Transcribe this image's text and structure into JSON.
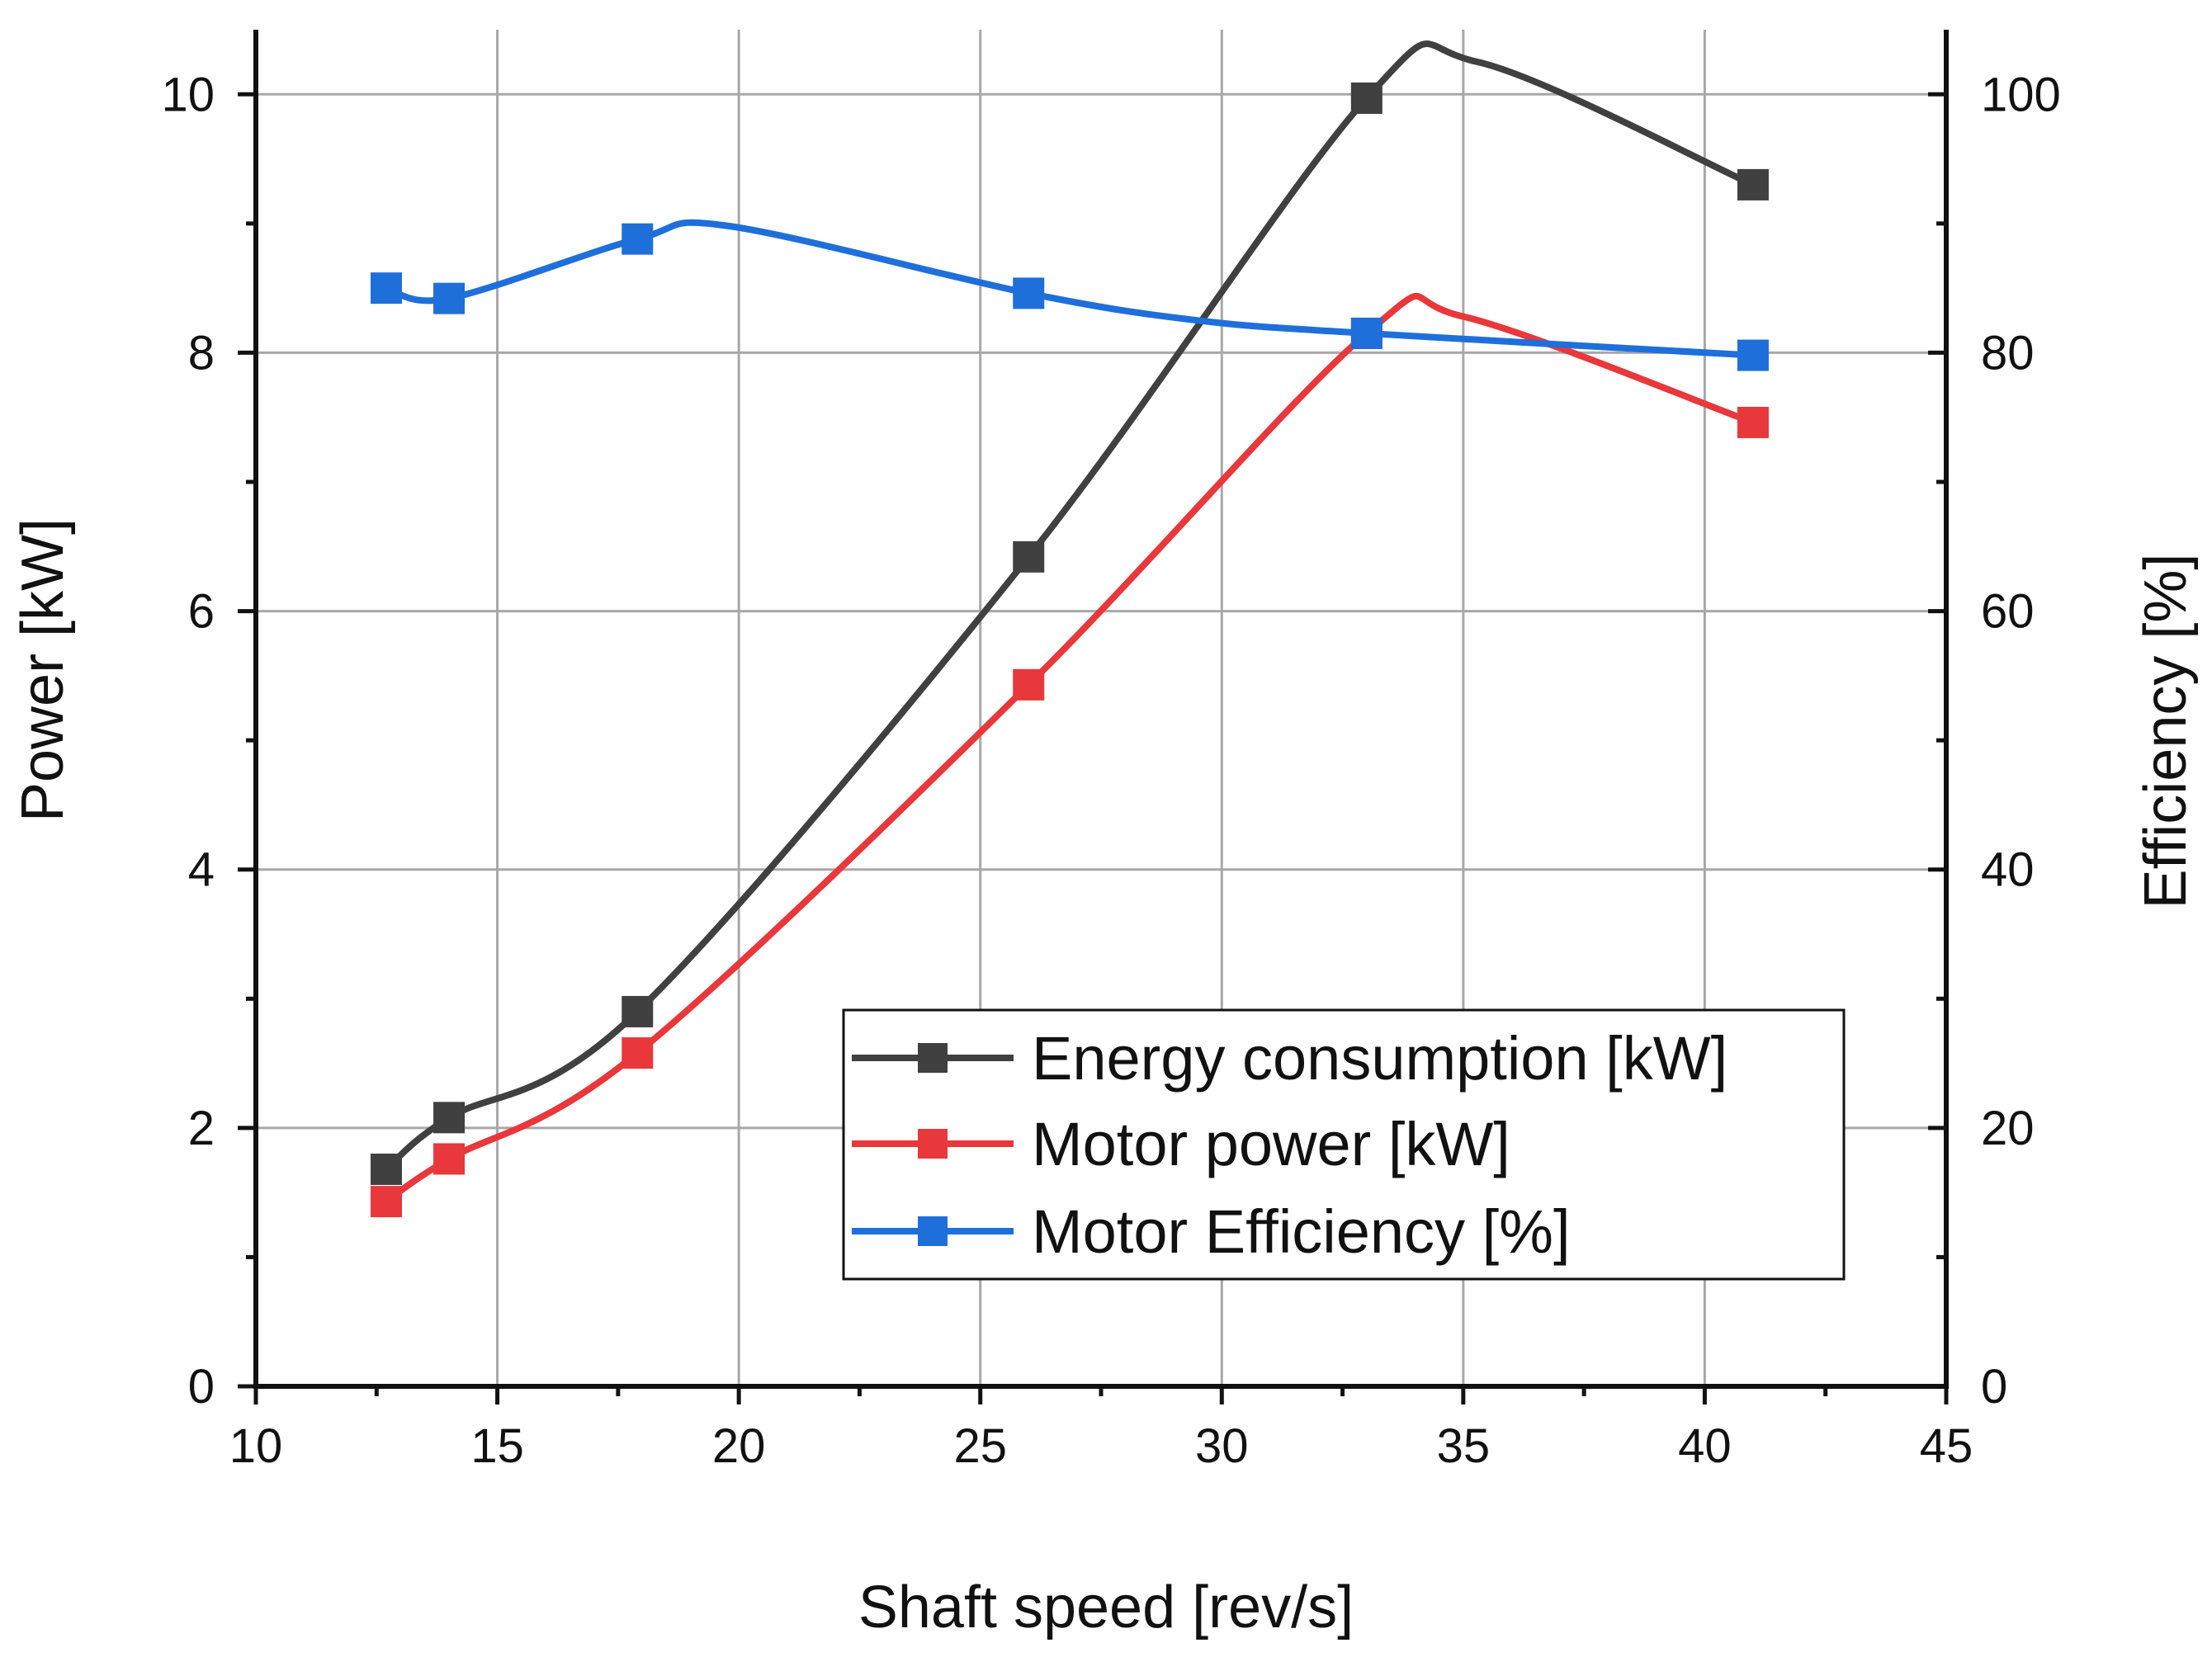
{
  "chart_data": {
    "type": "line",
    "title": "",
    "xlabel": "Shaft speed [rev/s]",
    "ylabel": "Power [kW]",
    "y2label": "Efficiency [%]",
    "xlim": [
      10,
      45
    ],
    "ylim": [
      0,
      10.5
    ],
    "y2lim": [
      0,
      105
    ],
    "xticks": [
      10,
      15,
      20,
      25,
      30,
      35,
      40,
      45
    ],
    "yticks": [
      0,
      2,
      4,
      6,
      8,
      10
    ],
    "y2ticks": [
      0,
      20,
      40,
      60,
      80,
      100
    ],
    "grid": true,
    "legend_position": "center-right",
    "x": [
      12.7,
      14.0,
      17.9,
      26.0,
      33.0,
      41.0
    ],
    "series": [
      {
        "name": "Energy consumption [kW]",
        "axis": "left",
        "color": "#404040",
        "values": [
          1.68,
          2.08,
          2.9,
          6.42,
          9.97,
          9.3
        ],
        "curve_points": [
          [
            35.3,
            10.25
          ]
        ]
      },
      {
        "name": "Motor power [kW]",
        "axis": "left",
        "color": "#e8383b",
        "values": [
          1.43,
          1.76,
          2.58,
          5.43,
          8.15,
          7.46
        ],
        "curve_points": [
          [
            35.0,
            8.28
          ]
        ]
      },
      {
        "name": "Motor Efficiency [%]",
        "axis": "right",
        "color": "#1f6fdb",
        "values": [
          85.0,
          84.2,
          88.8,
          84.6,
          81.5,
          79.8
        ],
        "curve_points": [
          [
            19.8,
            89.8
          ],
          [
            29.5,
            82.5
          ]
        ]
      }
    ]
  }
}
